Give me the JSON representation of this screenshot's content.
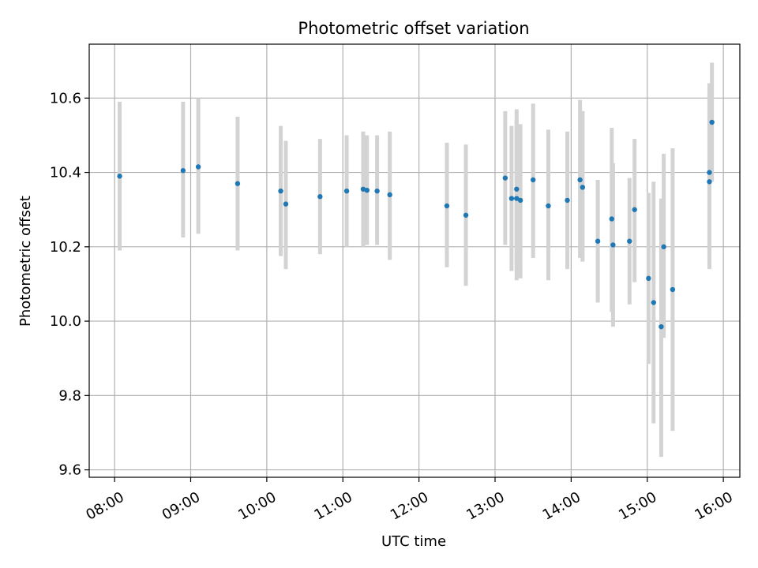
{
  "chart_data": {
    "type": "scatter",
    "title": "Photometric offset variation",
    "xlabel": "UTC time",
    "ylabel": "Photometric offset",
    "x_ticks": [
      "08:00",
      "09:00",
      "10:00",
      "11:00",
      "12:00",
      "13:00",
      "14:00",
      "15:00",
      "16:00"
    ],
    "y_ticks": [
      "9.6",
      "9.8",
      "10.0",
      "10.2",
      "10.4",
      "10.6"
    ],
    "xlim": [
      "07:40",
      "16:13"
    ],
    "ylim": [
      9.58,
      10.745
    ],
    "grid": true,
    "colors": {
      "point": "#1f77b4",
      "errorbar": "#d3d3d3",
      "grid": "#b0b0b0"
    },
    "points": [
      {
        "t": "08:04",
        "y": 10.39,
        "lo": 10.19,
        "hi": 10.59
      },
      {
        "t": "08:54",
        "y": 10.405,
        "lo": 10.225,
        "hi": 10.59
      },
      {
        "t": "09:06",
        "y": 10.415,
        "lo": 10.235,
        "hi": 10.6
      },
      {
        "t": "09:37",
        "y": 10.37,
        "lo": 10.19,
        "hi": 10.55
      },
      {
        "t": "10:11",
        "y": 10.35,
        "lo": 10.175,
        "hi": 10.525
      },
      {
        "t": "10:15",
        "y": 10.315,
        "lo": 10.14,
        "hi": 10.485
      },
      {
        "t": "10:42",
        "y": 10.335,
        "lo": 10.18,
        "hi": 10.49
      },
      {
        "t": "11:03",
        "y": 10.35,
        "lo": 10.2,
        "hi": 10.5
      },
      {
        "t": "11:16",
        "y": 10.355,
        "lo": 10.2,
        "hi": 10.51
      },
      {
        "t": "11:19",
        "y": 10.352,
        "lo": 10.205,
        "hi": 10.5
      },
      {
        "t": "11:27",
        "y": 10.35,
        "lo": 10.205,
        "hi": 10.5
      },
      {
        "t": "11:37",
        "y": 10.34,
        "lo": 10.165,
        "hi": 10.51
      },
      {
        "t": "12:22",
        "y": 10.31,
        "lo": 10.145,
        "hi": 10.48
      },
      {
        "t": "12:37",
        "y": 10.285,
        "lo": 10.095,
        "hi": 10.475
      },
      {
        "t": "13:08",
        "y": 10.385,
        "lo": 10.205,
        "hi": 10.565
      },
      {
        "t": "13:13",
        "y": 10.33,
        "lo": 10.135,
        "hi": 10.525
      },
      {
        "t": "13:17",
        "y": 10.355,
        "lo": 10.14,
        "hi": 10.57
      },
      {
        "t": "13:17",
        "y": 10.33,
        "lo": 10.11,
        "hi": 10.545
      },
      {
        "t": "13:20",
        "y": 10.325,
        "lo": 10.115,
        "hi": 10.53
      },
      {
        "t": "13:30",
        "y": 10.38,
        "lo": 10.17,
        "hi": 10.585
      },
      {
        "t": "13:42",
        "y": 10.31,
        "lo": 10.11,
        "hi": 10.515
      },
      {
        "t": "13:57",
        "y": 10.325,
        "lo": 10.14,
        "hi": 10.51
      },
      {
        "t": "14:07",
        "y": 10.38,
        "lo": 10.17,
        "hi": 10.595
      },
      {
        "t": "14:09",
        "y": 10.36,
        "lo": 10.16,
        "hi": 10.565
      },
      {
        "t": "14:21",
        "y": 10.215,
        "lo": 10.05,
        "hi": 10.38
      },
      {
        "t": "14:32",
        "y": 10.275,
        "lo": 10.025,
        "hi": 10.52
      },
      {
        "t": "14:33",
        "y": 10.205,
        "lo": 9.985,
        "hi": 10.425
      },
      {
        "t": "14:46",
        "y": 10.215,
        "lo": 10.045,
        "hi": 10.385
      },
      {
        "t": "14:50",
        "y": 10.3,
        "lo": 10.105,
        "hi": 10.49
      },
      {
        "t": "15:01",
        "y": 10.115,
        "lo": 9.885,
        "hi": 10.345
      },
      {
        "t": "15:05",
        "y": 10.05,
        "lo": 9.725,
        "hi": 10.375
      },
      {
        "t": "15:11",
        "y": 9.985,
        "lo": 9.635,
        "hi": 10.33
      },
      {
        "t": "15:13",
        "y": 10.2,
        "lo": 9.955,
        "hi": 10.45
      },
      {
        "t": "15:20",
        "y": 10.085,
        "lo": 9.705,
        "hi": 10.465
      },
      {
        "t": "15:49",
        "y": 10.4,
        "lo": 10.17,
        "hi": 10.64
      },
      {
        "t": "15:49",
        "y": 10.375,
        "lo": 10.14,
        "hi": 10.61
      },
      {
        "t": "15:51",
        "y": 10.535,
        "lo": 10.375,
        "hi": 10.695
      }
    ]
  }
}
